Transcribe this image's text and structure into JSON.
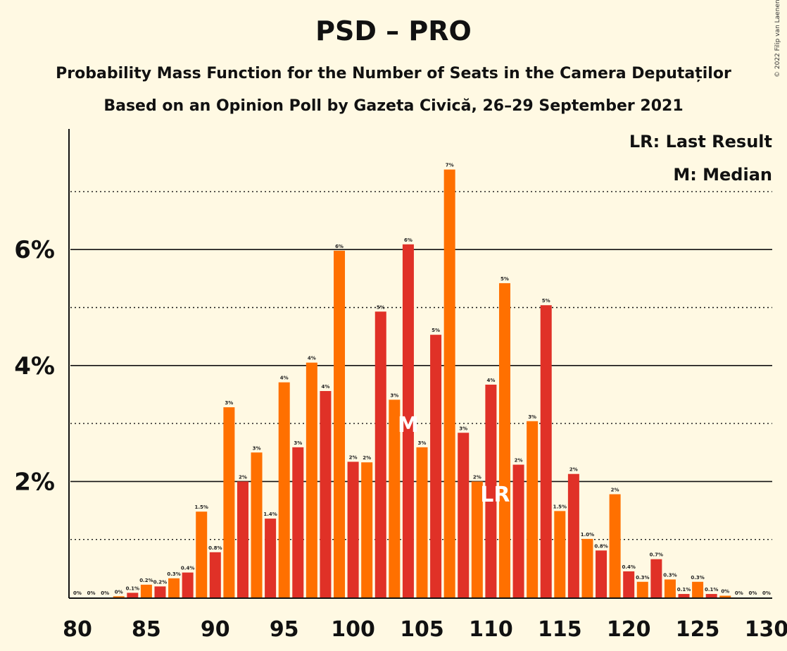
{
  "title": "PSD – PRO",
  "subtitle_1": "Probability Mass Function for the Number of Seats in the Camera Deputaților",
  "subtitle_2": "Based on an Opinion Poll by Gazeta Civică, 26–29 September 2021",
  "copyright": "© 2022 Filip van Laenen",
  "legend": {
    "last_result": "LR: Last Result",
    "median": "M: Median"
  },
  "markers": {
    "median_label": "M",
    "median_seat": 104,
    "last_result_label": "LR",
    "last_result_seat": 110
  },
  "colors": {
    "red": "#e03127",
    "orange": "#ff7000",
    "background": "#fff9e3"
  },
  "chart_data": {
    "type": "bar",
    "xlim": [
      80,
      130
    ],
    "ylim": [
      0,
      7.8
    ],
    "y_ticks": [
      2,
      4,
      6
    ],
    "y_tick_labels": [
      "2%",
      "4%",
      "6%"
    ],
    "x_ticks": [
      80,
      85,
      90,
      95,
      100,
      105,
      110,
      115,
      120,
      125,
      130
    ],
    "x": [
      80,
      81,
      82,
      83,
      84,
      85,
      86,
      87,
      88,
      89,
      90,
      91,
      92,
      93,
      94,
      95,
      96,
      97,
      98,
      99,
      100,
      101,
      102,
      103,
      104,
      105,
      106,
      107,
      108,
      109,
      110,
      111,
      112,
      113,
      114,
      115,
      116,
      117,
      118,
      119,
      120,
      121,
      122,
      123,
      124,
      125,
      126,
      127,
      128,
      129,
      130
    ],
    "values": [
      0,
      0,
      0,
      0.02,
      0.08,
      0.22,
      0.19,
      0.33,
      0.43,
      1.48,
      0.78,
      3.28,
      2.0,
      2.5,
      1.36,
      3.71,
      2.59,
      4.05,
      3.56,
      5.98,
      2.34,
      2.33,
      4.93,
      3.41,
      6.09,
      2.59,
      4.53,
      7.38,
      2.84,
      2.0,
      3.67,
      5.42,
      2.29,
      3.04,
      5.04,
      1.49,
      2.13,
      1.01,
      0.81,
      1.78,
      0.45,
      0.27,
      0.66,
      0.31,
      0.06,
      0.27,
      0.06,
      0.03,
      0,
      0,
      0
    ],
    "labels": [
      "0%",
      "0%",
      "0%",
      "0%",
      "0.1%",
      "0.2%",
      "0.2%",
      "0.3%",
      "0.4%",
      "1.5%",
      "0.8%",
      "3%",
      "2%",
      "3%",
      "1.4%",
      "4%",
      "3%",
      "4%",
      "4%",
      "6%",
      "2%",
      "2%",
      "5%",
      "3%",
      "6%",
      "3%",
      "5%",
      "7%",
      "3%",
      "2%",
      "4%",
      "5%",
      "2%",
      "3%",
      "5%",
      "1.5%",
      "2%",
      "1.0%",
      "0.8%",
      "2%",
      "0.4%",
      "0.3%",
      "0.7%",
      "0.3%",
      "0.1%",
      "0.3%",
      "0.1%",
      "0%",
      "0%",
      "0%",
      "0%"
    ]
  }
}
